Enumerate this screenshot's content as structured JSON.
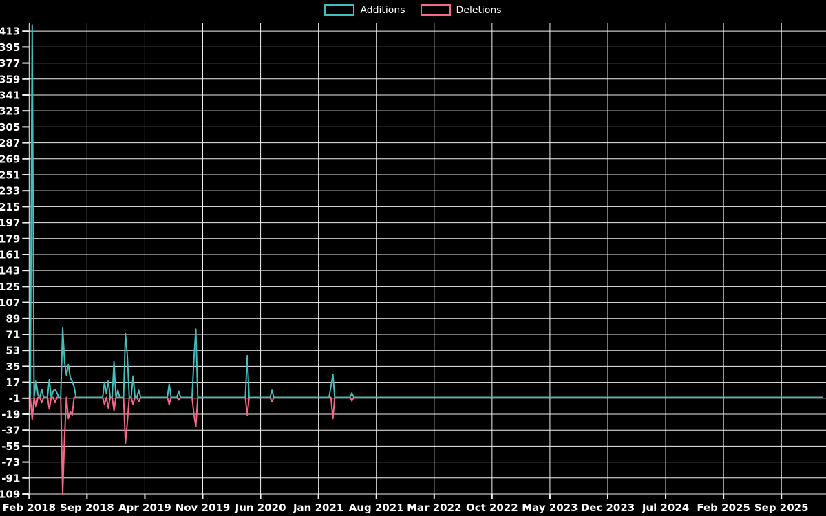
{
  "legend": {
    "items": [
      {
        "label": "Additions",
        "color": "#44bdbd"
      },
      {
        "label": "Deletions",
        "color": "#f6678a"
      }
    ]
  },
  "colors": {
    "background": "#000000",
    "gridline": "#f0f0f0",
    "additions": "#44bdbd",
    "deletions": "#f6678a",
    "tick_text": "#ffffff"
  },
  "chart_data": {
    "type": "line",
    "title": "",
    "xlabel": "",
    "ylabel": "",
    "grid": true,
    "legend_position": "top-center",
    "x_unit": "week",
    "x_tick_interval_weeks": 30.43,
    "x_tick_labels": [
      "Feb 2018",
      "Sep 2018",
      "Apr 2019",
      "Nov 2019",
      "Jun 2020",
      "Jan 2021",
      "Aug 2021",
      "Mar 2022",
      "Oct 2022",
      "May 2023",
      "Dec 2023",
      "Jul 2024",
      "Feb 2025",
      "Sep 2025"
    ],
    "y_ticks": [
      413,
      395,
      377,
      359,
      341,
      323,
      305,
      287,
      269,
      251,
      233,
      215,
      197,
      179,
      161,
      143,
      125,
      107,
      89,
      71,
      53,
      35,
      17,
      -1,
      -19,
      -37,
      -55,
      -73,
      -91,
      -109
    ],
    "ylim": [
      -120,
      421
    ],
    "xlim_weeks": [
      0,
      416
    ],
    "fill_value": 0,
    "series": [
      {
        "name": "Additions",
        "color": "#44bdbd",
        "points": [
          [
            1,
            420
          ],
          [
            3,
            19
          ],
          [
            4,
            3
          ],
          [
            6,
            9
          ],
          [
            10,
            20
          ],
          [
            12,
            7
          ],
          [
            13,
            9
          ],
          [
            14,
            5
          ],
          [
            17,
            78
          ],
          [
            18,
            40
          ],
          [
            19,
            25
          ],
          [
            20,
            37
          ],
          [
            21,
            22
          ],
          [
            22,
            18
          ],
          [
            23,
            12
          ],
          [
            39,
            17
          ],
          [
            40,
            4
          ],
          [
            41,
            19
          ],
          [
            44,
            40
          ],
          [
            46,
            8
          ],
          [
            50,
            72
          ],
          [
            51,
            47
          ],
          [
            54,
            24
          ],
          [
            57,
            8
          ],
          [
            73,
            15
          ],
          [
            78,
            7
          ],
          [
            86,
            44
          ],
          [
            87,
            77
          ],
          [
            114,
            47
          ],
          [
            127,
            8
          ],
          [
            158,
            12
          ],
          [
            159,
            26
          ],
          [
            169,
            5
          ]
        ]
      },
      {
        "name": "Deletions",
        "color": "#f6678a",
        "points": [
          [
            1,
            -25
          ],
          [
            3,
            -11
          ],
          [
            6,
            -6
          ],
          [
            10,
            -13
          ],
          [
            13,
            -6
          ],
          [
            17,
            -109
          ],
          [
            18,
            -44
          ],
          [
            20,
            -24
          ],
          [
            21,
            -16
          ],
          [
            22,
            -20
          ],
          [
            39,
            -8
          ],
          [
            41,
            -12
          ],
          [
            44,
            -15
          ],
          [
            50,
            -52
          ],
          [
            51,
            -28
          ],
          [
            54,
            -8
          ],
          [
            57,
            -5
          ],
          [
            73,
            -8
          ],
          [
            78,
            -3
          ],
          [
            86,
            -20
          ],
          [
            87,
            -33
          ],
          [
            114,
            -20
          ],
          [
            127,
            -5
          ],
          [
            159,
            -24
          ],
          [
            169,
            -4
          ]
        ]
      }
    ]
  }
}
